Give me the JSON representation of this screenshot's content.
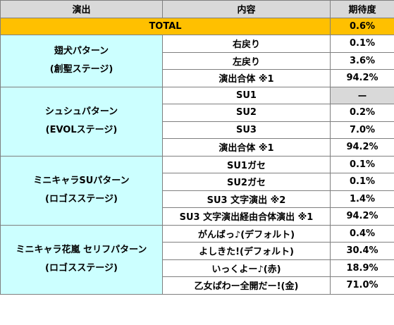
{
  "header": {
    "col1": "演出",
    "col2": "内容",
    "col3": "期待度"
  },
  "total": {
    "label": "TOTAL",
    "value": "0.6%"
  },
  "groups": [
    {
      "line1": "翅犬パターン",
      "line2": "(創聖ステージ)",
      "rows": [
        {
          "content": "右戻り",
          "value": "0.1%"
        },
        {
          "content": "左戻り",
          "value": "3.6%"
        },
        {
          "content": "演出合体 ※1",
          "value": "94.2%"
        }
      ]
    },
    {
      "line1": "シュシュパターン",
      "line2": "(EVOLステージ)",
      "rows": [
        {
          "content": "SU1",
          "value": "ー"
        },
        {
          "content": "SU2",
          "value": "0.2%"
        },
        {
          "content": "SU3",
          "value": "7.0%"
        },
        {
          "content": "演出合体 ※1",
          "value": "94.2%"
        }
      ]
    },
    {
      "line1": "ミニキャラSUパターン",
      "line2": "(ロゴスステージ)",
      "rows": [
        {
          "content": "SU1ガセ",
          "value": "0.1%"
        },
        {
          "content": "SU2ガセ",
          "value": "0.1%"
        },
        {
          "content": "SU3 文字演出 ※2",
          "value": "1.4%"
        },
        {
          "content": "SU3 文字演出経由合体演出 ※1",
          "value": "94.2%"
        }
      ]
    },
    {
      "line1": "ミニキャラ花嵐 セリフパターン",
      "line2": "(ロゴスステージ)",
      "rows": [
        {
          "content": "がんばっ♪(デフォルト)",
          "value": "0.4%"
        },
        {
          "content": "よしきた!(デフォルト)",
          "value": "30.4%"
        },
        {
          "content": "いっくよー♪(赤)",
          "value": "18.9%"
        },
        {
          "content": "乙女ぱわー全開だー!(金)",
          "value": "71.0%"
        }
      ]
    }
  ]
}
